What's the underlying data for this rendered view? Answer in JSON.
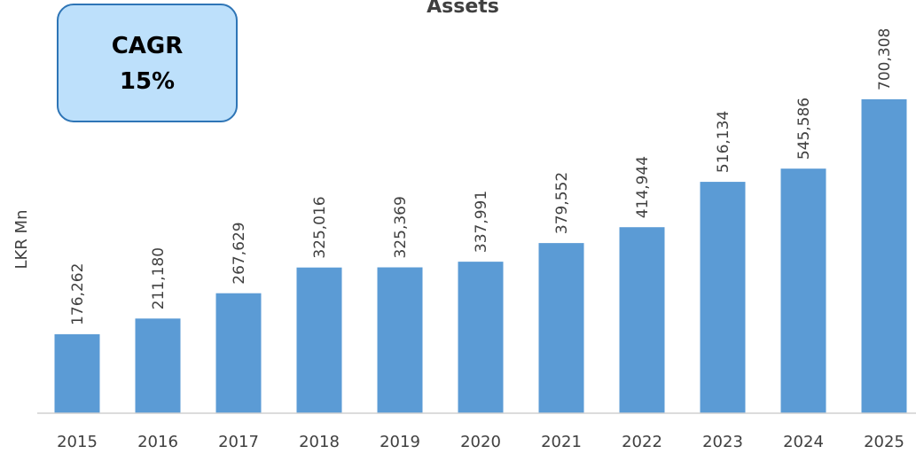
{
  "chart_data": {
    "type": "bar",
    "title": "Assets",
    "y_label": "LKR Mn",
    "annotations": [
      "CAGR",
      "15%"
    ],
    "categories": [
      "2015",
      "2016",
      "2017",
      "2018",
      "2019",
      "2020",
      "2021",
      "2022",
      "2023",
      "2024",
      "2025"
    ],
    "values": [
      176262,
      211180,
      267629,
      325016,
      325369,
      337991,
      379552,
      414944,
      516134,
      545586,
      700308
    ],
    "value_labels": [
      "176,262",
      "211,180",
      "267,629",
      "325,016",
      "325,369",
      "337,991",
      "379,552",
      "414,944",
      "516,134",
      "545,586",
      "700,308"
    ],
    "color": "#5b9bd5",
    "ylim": [
      0,
      900000
    ]
  }
}
